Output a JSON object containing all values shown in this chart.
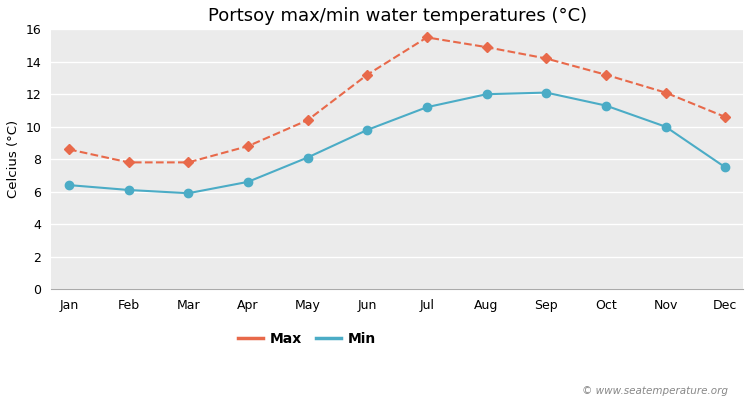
{
  "title": "Portsoy max/min water temperatures (°C)",
  "ylabel": "Celcius (°C)",
  "months": [
    "Jan",
    "Feb",
    "Mar",
    "Apr",
    "May",
    "Jun",
    "Jul",
    "Aug",
    "Sep",
    "Oct",
    "Nov",
    "Dec"
  ],
  "max_values": [
    8.6,
    7.8,
    7.8,
    8.8,
    10.4,
    13.2,
    15.5,
    14.9,
    14.2,
    13.2,
    12.1,
    10.6
  ],
  "min_values": [
    6.4,
    6.1,
    5.9,
    6.6,
    8.1,
    9.8,
    11.2,
    12.0,
    12.1,
    11.3,
    10.0,
    7.5
  ],
  "max_color": "#e8694a",
  "min_color": "#4bacc6",
  "fig_bg_color": "#ffffff",
  "plot_bg_color": "#ebebeb",
  "grid_color": "#ffffff",
  "ylim": [
    0,
    16
  ],
  "yticks": [
    0,
    2,
    4,
    6,
    8,
    10,
    12,
    14,
    16
  ],
  "watermark": "© www.seatemperature.org",
  "title_fontsize": 13,
  "label_fontsize": 9.5,
  "tick_fontsize": 9,
  "legend_fontsize": 10
}
